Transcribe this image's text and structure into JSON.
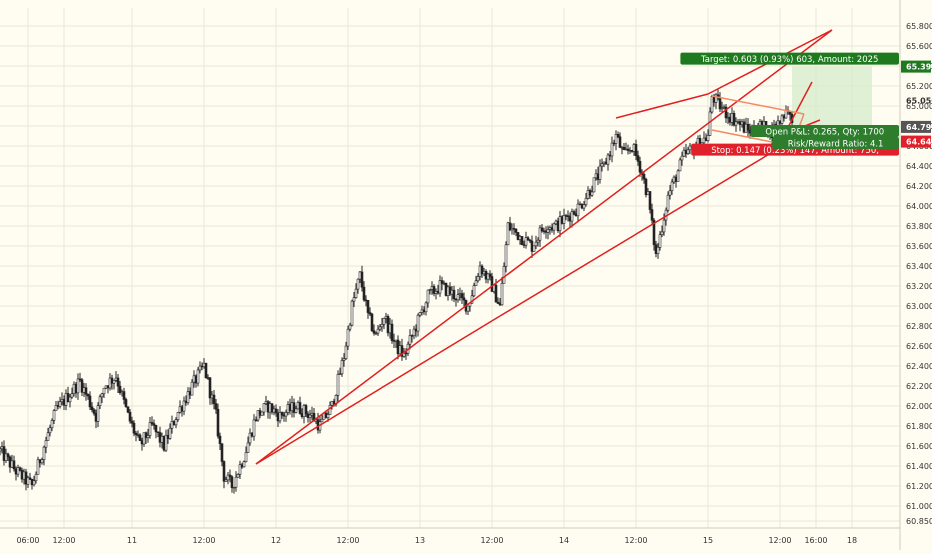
{
  "chart_data": {
    "type": "candlestick",
    "y_axis": {
      "range": [
        60.78,
        65.98
      ],
      "ticks": [
        "60.850",
        "61.000",
        "61.200",
        "61.400",
        "61.600",
        "61.800",
        "62.000",
        "62.200",
        "62.400",
        "62.600",
        "62.800",
        "63.000",
        "63.200",
        "63.400",
        "63.600",
        "63.800",
        "64.000",
        "64.200",
        "64.400",
        "64.600",
        "64.800",
        "65.000",
        "65.200",
        "65.400",
        "65.600",
        "65.800"
      ],
      "tick_values": [
        60.85,
        61.0,
        61.2,
        61.4,
        61.6,
        61.8,
        62.0,
        62.2,
        62.4,
        62.6,
        62.8,
        63.0,
        63.2,
        63.4,
        63.6,
        63.8,
        64.0,
        64.2,
        64.4,
        64.6,
        64.8,
        65.0,
        65.2,
        65.4,
        65.6,
        65.8
      ]
    },
    "x_axis": {
      "range_bars": [
        0,
        225
      ],
      "ticks": [
        {
          "label": "06:00",
          "bar": 7
        },
        {
          "label": "12:00",
          "bar": 16
        },
        {
          "label": "11",
          "bar": 33
        },
        {
          "label": "12:00",
          "bar": 51
        },
        {
          "label": "12",
          "bar": 69
        },
        {
          "label": "12:00",
          "bar": 87
        },
        {
          "label": "13",
          "bar": 105
        },
        {
          "label": "12:00",
          "bar": 123
        },
        {
          "label": "14",
          "bar": 141
        },
        {
          "label": "12:00",
          "bar": 159
        },
        {
          "label": "15",
          "bar": 177
        },
        {
          "label": "12:00",
          "bar": 195
        },
        {
          "label": "16:00",
          "bar": 204
        },
        {
          "label": "18",
          "bar": 213
        }
      ]
    },
    "price_path": [
      [
        0,
        61.55
      ],
      [
        4,
        61.35
      ],
      [
        8,
        61.2
      ],
      [
        11,
        61.6
      ],
      [
        14,
        61.95
      ],
      [
        17,
        62.1
      ],
      [
        20,
        62.25
      ],
      [
        24,
        61.9
      ],
      [
        26,
        62.2
      ],
      [
        29,
        62.3
      ],
      [
        32,
        61.9
      ],
      [
        35,
        61.6
      ],
      [
        38,
        61.8
      ],
      [
        41,
        61.6
      ],
      [
        44,
        61.9
      ],
      [
        48,
        62.2
      ],
      [
        51,
        62.4
      ],
      [
        54,
        61.9
      ],
      [
        56,
        61.3
      ],
      [
        58,
        61.2
      ],
      [
        61,
        61.5
      ],
      [
        64,
        61.9
      ],
      [
        67,
        62.0
      ],
      [
        70,
        61.9
      ],
      [
        74,
        62.0
      ],
      [
        78,
        61.9
      ],
      [
        80,
        61.8
      ],
      [
        83,
        62.0
      ],
      [
        86,
        62.5
      ],
      [
        88,
        63.0
      ],
      [
        90,
        63.3
      ],
      [
        92,
        62.9
      ],
      [
        94,
        62.7
      ],
      [
        96,
        62.9
      ],
      [
        99,
        62.6
      ],
      [
        101,
        62.5
      ],
      [
        104,
        62.8
      ],
      [
        107,
        63.1
      ],
      [
        110,
        63.2
      ],
      [
        114,
        63.1
      ],
      [
        117,
        63.0
      ],
      [
        120,
        63.4
      ],
      [
        123,
        63.2
      ],
      [
        125,
        63.0
      ],
      [
        127,
        63.8
      ],
      [
        130,
        63.7
      ],
      [
        133,
        63.6
      ],
      [
        136,
        63.8
      ],
      [
        139,
        63.8
      ],
      [
        142,
        63.9
      ],
      [
        145,
        64.0
      ],
      [
        148,
        64.2
      ],
      [
        151,
        64.4
      ],
      [
        154,
        64.7
      ],
      [
        156,
        64.5
      ],
      [
        158,
        64.6
      ],
      [
        160,
        64.4
      ],
      [
        162,
        64.1
      ],
      [
        163,
        63.8
      ],
      [
        164,
        63.5
      ],
      [
        165,
        63.7
      ],
      [
        167,
        64.1
      ],
      [
        169,
        64.3
      ],
      [
        171,
        64.5
      ],
      [
        174,
        64.6
      ],
      [
        177,
        64.7
      ],
      [
        178,
        65.1
      ],
      [
        181,
        64.95
      ],
      [
        184,
        64.85
      ],
      [
        187,
        64.75
      ],
      [
        190,
        64.8
      ],
      [
        193,
        64.75
      ],
      [
        195,
        64.85
      ],
      [
        197,
        65.0
      ],
      [
        198,
        64.79
      ]
    ],
    "trendlines": [
      {
        "from": [
          64,
          61.42
        ],
        "to": [
          208,
          65.76
        ],
        "color": "#e02020"
      },
      {
        "from": [
          64,
          61.42
        ],
        "to": [
          125,
          62.9
        ],
        "color": "#e02020"
      },
      {
        "from": [
          125,
          62.9
        ],
        "to": [
          194,
          64.56
        ],
        "color": "#e02020"
      },
      {
        "from": [
          154,
          64.88
        ],
        "to": [
          177,
          65.12
        ],
        "color": "#e02020"
      },
      {
        "from": [
          177,
          65.12
        ],
        "to": [
          208,
          65.76
        ],
        "color": "#e02020"
      },
      {
        "from": [
          194,
          64.56
        ],
        "to": [
          203,
          65.24
        ],
        "color": "#e02020"
      },
      {
        "from": [
          178,
          65.1
        ],
        "to": [
          201,
          64.92
        ],
        "color": "#f28b65"
      },
      {
        "from": [
          178,
          64.76
        ],
        "to": [
          198,
          64.6
        ],
        "color": "#f28b65"
      },
      {
        "from": [
          198,
          64.6
        ],
        "to": [
          201,
          64.92
        ],
        "color": "#f28b65"
      },
      {
        "from": [
          200,
          64.78
        ],
        "to": [
          205,
          64.86
        ],
        "color": "#e02020"
      }
    ],
    "position": {
      "entry": 64.79,
      "target_price": 65.394,
      "stop_price": 64.644,
      "start_bar": 198,
      "end_bar": 218,
      "target_label": "Target: 0.603 (0.93%) 603, Amount: 2025",
      "stop_label": "Stop: 0.147 (0.23%) 147, Amount: 750,",
      "pnl_label": "Open P&L: 0.265, Qty: 1700",
      "rr_label": "Risk/Reward Ratio: 4.1"
    },
    "price_badges": [
      {
        "text": "65.394",
        "value": 65.394,
        "color": "#1f7a1f",
        "text_color": "#ffffff"
      },
      {
        "text": "65.056",
        "value": 65.056,
        "color": "",
        "text_color": "#333333"
      },
      {
        "text": "64.791",
        "value": 64.791,
        "color": "#555555",
        "text_color": "#ffffff"
      },
      {
        "text": "64.644",
        "value": 64.644,
        "color": "#e0202a",
        "text_color": "#ffffff"
      }
    ],
    "colors": {
      "background": "#fffdf2",
      "candle": "#222222",
      "grid": "#e9e6d8",
      "axis_text": "#333333",
      "target_zone": "#d6ebc9",
      "stop_zone": "#f7c9c9",
      "target_label_bg": "#1f7a1f",
      "stop_label_bg": "#e0202a",
      "pnl_label_bg": "#2d7d2d"
    }
  }
}
